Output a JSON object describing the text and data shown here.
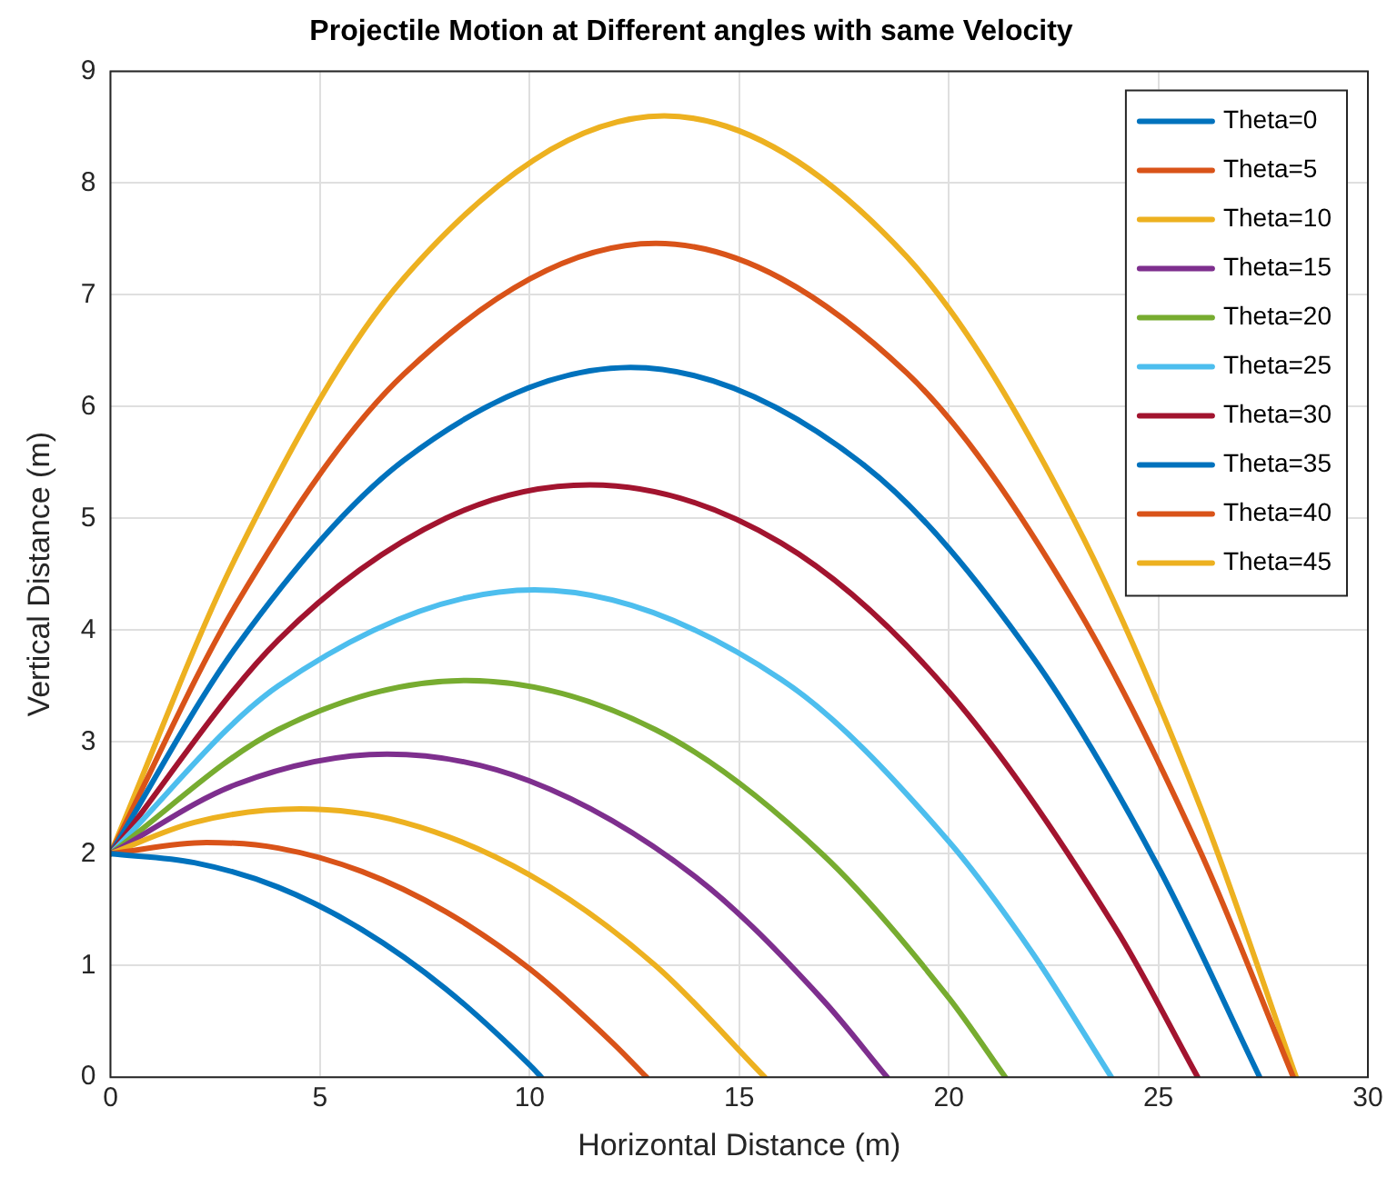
{
  "chart_data": {
    "type": "line",
    "title": "Projectile Motion at Different angles with same Velocity",
    "xlabel": "Horizontal Distance (m)",
    "ylabel": "Vertical Distance (m)",
    "xlim": [
      0,
      30
    ],
    "xticks": [
      0,
      5,
      10,
      15,
      20,
      25,
      30
    ],
    "ylim": [
      0,
      9
    ],
    "yticks": [
      0,
      1,
      2,
      3,
      4,
      5,
      6,
      7,
      8,
      9
    ],
    "grid": true,
    "legend": "top right",
    "marker": "none",
    "line_style": "solid",
    "series": [
      {
        "name": "Theta=0",
        "color": "#0072bd",
        "x": [
          0,
          2,
          4,
          6,
          8,
          10,
          10.28
        ],
        "values": [
          2,
          1.92,
          1.7,
          1.32,
          0.79,
          0.11,
          0
        ]
      },
      {
        "name": "Theta=5",
        "color": "#d95319",
        "x": [
          0,
          2.29,
          4,
          6,
          8,
          10,
          12,
          12.79
        ],
        "values": [
          2,
          2.1,
          2.05,
          1.84,
          1.48,
          0.97,
          0.3,
          0
        ]
      },
      {
        "name": "Theta=10",
        "color": "#edb120",
        "x": [
          0,
          2,
          4.52,
          7,
          10,
          13,
          15.61
        ],
        "values": [
          2,
          2.28,
          2.4,
          2.28,
          1.81,
          1,
          0
        ]
      },
      {
        "name": "Theta=15",
        "color": "#7e2f8e",
        "x": [
          0,
          3,
          6.6,
          10,
          14,
          17,
          18.53
        ],
        "values": [
          2,
          2.62,
          2.89,
          2.65,
          1.78,
          0.69,
          0
        ]
      },
      {
        "name": "Theta=20",
        "color": "#77ac30",
        "x": [
          0,
          4,
          8.49,
          13,
          17,
          20,
          21.35
        ],
        "values": [
          2,
          3.11,
          3.55,
          3.11,
          1.99,
          0.71,
          0
        ]
      },
      {
        "name": "Theta=25",
        "color": "#4dbeee",
        "x": [
          0,
          4,
          10.12,
          16,
          20,
          22,
          23.88
        ],
        "values": [
          2,
          3.5,
          4.36,
          3.56,
          2.11,
          1.11,
          0
        ]
      },
      {
        "name": "Theta=30",
        "color": "#a2142f",
        "x": [
          0,
          4,
          8,
          11.44,
          16,
          20,
          24,
          25.94
        ],
        "values": [
          2,
          3.91,
          5,
          5.3,
          4.78,
          3.45,
          1.32,
          0
        ]
      },
      {
        "name": "Theta=35",
        "color": "#0072bd",
        "x": [
          0,
          3,
          7,
          12.41,
          18,
          22,
          25,
          27.42
        ],
        "values": [
          2,
          3.85,
          5.52,
          6.35,
          5.47,
          3.76,
          1.88,
          0
        ]
      },
      {
        "name": "Theta=40",
        "color": "#d95319",
        "x": [
          0,
          3,
          7,
          13.01,
          19,
          23,
          26,
          28.22
        ],
        "values": [
          2,
          4.23,
          6.29,
          7.46,
          6.3,
          4.24,
          2.02,
          0
        ]
      },
      {
        "name": "Theta=45",
        "color": "#edb120",
        "x": [
          0,
          3,
          7,
          13.21,
          19,
          23,
          26,
          28.29
        ],
        "values": [
          2,
          4.66,
          7.15,
          8.6,
          7.34,
          4.98,
          2.42,
          0
        ]
      }
    ]
  }
}
